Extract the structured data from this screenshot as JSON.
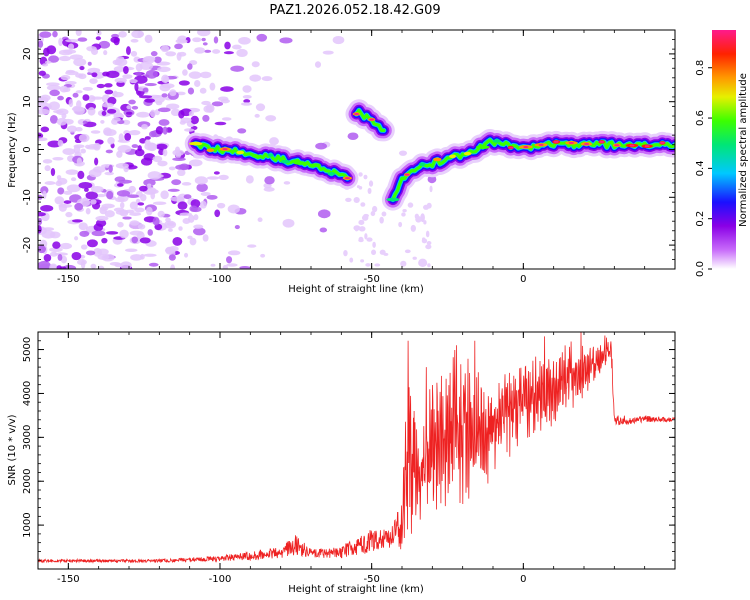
{
  "title": "PAZ1.2026.052.18.42.G09",
  "chart_data": [
    {
      "type": "heatmap",
      "name": "spectrogram",
      "xlabel": "Height of straight line (km)",
      "ylabel": "Frequency (Hz)",
      "xlim": [
        -160,
        50
      ],
      "ylim": [
        -25,
        25
      ],
      "xticks": [
        -150,
        -100,
        -50,
        0
      ],
      "xtick_labels": [
        "-150",
        "-100",
        "-50",
        "0"
      ],
      "yticks": [
        -20,
        -10,
        0,
        10,
        20
      ],
      "ytick_labels": [
        "-20",
        "-10",
        "0",
        "10",
        "20"
      ],
      "ridge": {
        "x": [
          -108,
          -100,
          -90,
          -80,
          -72,
          -65,
          -58,
          -55,
          -50,
          -46,
          -43,
          -40,
          -35,
          -30,
          -25,
          -20,
          -15,
          -11,
          -8,
          -5,
          0,
          10,
          20,
          30,
          40,
          50
        ],
        "y": [
          1,
          0,
          -1,
          -2,
          -3,
          -4,
          -6,
          8,
          6,
          4,
          -11,
          -6,
          -4,
          -3,
          -2,
          -1,
          0,
          2,
          1,
          1,
          0.5,
          1,
          1,
          1,
          1,
          1
        ]
      },
      "colorbar": {
        "label": "Normalized spectral amplitude",
        "range": [
          0.0,
          0.95
        ],
        "ticks": [
          0.0,
          0.2,
          0.4,
          0.6,
          0.8
        ],
        "tick_labels": [
          "0.0",
          "0.2",
          "0.4",
          "0.6",
          "0.8"
        ]
      }
    },
    {
      "type": "line",
      "name": "snr",
      "xlabel": "Height of straight line (km)",
      "ylabel": "SNR (10 * v/v)",
      "xlim": [
        -160,
        50
      ],
      "ylim": [
        0,
        5400
      ],
      "xticks": [
        -150,
        -100,
        -50,
        0
      ],
      "xtick_labels": [
        "-150",
        "-100",
        "-50",
        "0"
      ],
      "yticks": [
        1000,
        2000,
        3000,
        4000,
        5000
      ],
      "ytick_labels": [
        "1000",
        "2000",
        "3000",
        "4000",
        "5000"
      ],
      "color": "#ee2222",
      "envelope": {
        "x": [
          -160,
          -120,
          -100,
          -90,
          -80,
          -75,
          -70,
          -60,
          -52,
          -45,
          -40,
          -38,
          -36,
          -33,
          -30,
          -25,
          -20,
          -15,
          -10,
          -5,
          0,
          5,
          10,
          15,
          20,
          25,
          29,
          30,
          35,
          40,
          50
        ],
        "low": [
          150,
          150,
          180,
          200,
          250,
          300,
          250,
          250,
          350,
          500,
          400,
          600,
          900,
          900,
          1200,
          1300,
          1400,
          1500,
          2000,
          2300,
          2800,
          3000,
          3200,
          3500,
          3800,
          4200,
          4600,
          3250,
          3300,
          3350,
          3350
        ],
        "high": [
          220,
          220,
          300,
          400,
          500,
          800,
          450,
          500,
          900,
          900,
          1500,
          5200,
          3500,
          3500,
          4500,
          5100,
          5200,
          4500,
          4500,
          4800,
          5000,
          5000,
          5100,
          5200,
          5300,
          5400,
          5300,
          3500,
          3500,
          3500,
          3450
        ]
      },
      "spikes": [
        {
          "x": -38,
          "y": 5200
        },
        {
          "x": -36,
          "y": 3600
        },
        {
          "x": -32,
          "y": 4600
        },
        {
          "x": -27,
          "y": 4400
        },
        {
          "x": -22,
          "y": 5100
        },
        {
          "x": -16,
          "y": 5200
        },
        {
          "x": -10,
          "y": 3500
        },
        {
          "x": 7,
          "y": 5300
        },
        {
          "x": 19,
          "y": 5400
        }
      ]
    }
  ]
}
